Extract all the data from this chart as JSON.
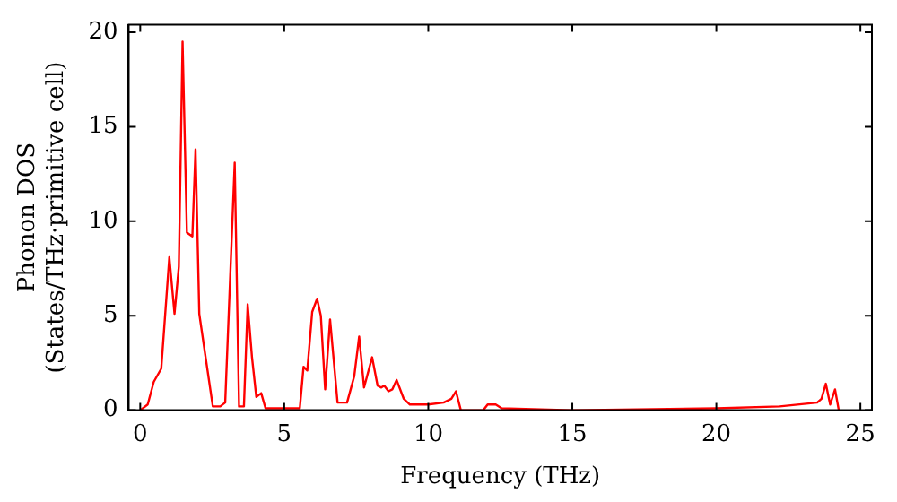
{
  "chart_data": {
    "type": "line",
    "xlabel": "Frequency (THz)",
    "ylabel": "Phonon DOS\n(States/THz·primitive cell)",
    "x": [
      0,
      0.26,
      0.47,
      0.73,
      1.01,
      1.19,
      1.34,
      1.47,
      1.62,
      1.81,
      1.92,
      2.05,
      2.26,
      2.52,
      2.78,
      2.95,
      3.28,
      3.43,
      3.6,
      3.73,
      3.88,
      4.03,
      4.2,
      4.35,
      5.54,
      5.67,
      5.8,
      5.97,
      6.14,
      6.27,
      6.42,
      6.59,
      6.85,
      7.18,
      7.43,
      7.6,
      7.77,
      8.05,
      8.24,
      8.37,
      8.47,
      8.62,
      8.75,
      8.9,
      9.15,
      9.36,
      10,
      10.53,
      10.8,
      10.96,
      11.13,
      11.91,
      12.06,
      12.34,
      12.55,
      15,
      20,
      22.2,
      23.5,
      23.65,
      23.8,
      23.95,
      24.12,
      24.25
    ],
    "series": [
      {
        "color": "#ff0000",
        "values": [
          0,
          0.3,
          1.5,
          2.2,
          8.1,
          5.1,
          7.6,
          19.5,
          9.4,
          9.2,
          13.8,
          5.1,
          2.9,
          0.2,
          0.2,
          0.4,
          13.1,
          0.2,
          0.2,
          5.6,
          2.8,
          0.7,
          0.9,
          0.1,
          0.1,
          2.3,
          2.1,
          5.2,
          5.9,
          5,
          1.1,
          4.8,
          0.4,
          0.4,
          1.8,
          3.9,
          1.2,
          2.8,
          1.3,
          1.2,
          1.3,
          1,
          1.1,
          1.6,
          0.6,
          0.3,
          0.3,
          0.4,
          0.6,
          1,
          0,
          0,
          0.3,
          0.3,
          0.1,
          0,
          0.1,
          0.2,
          0.4,
          0.6,
          1.4,
          0.3,
          1.1,
          0
        ]
      }
    ],
    "xlim": [
      -0.4,
      25.4
    ],
    "ylim": [
      0,
      20.4
    ],
    "xticks": [
      0,
      5,
      10,
      15,
      20,
      25
    ],
    "yticks": [
      0,
      5,
      10,
      15,
      20
    ],
    "grid": false,
    "legend": false,
    "marker": "none",
    "line_style": "solid"
  }
}
